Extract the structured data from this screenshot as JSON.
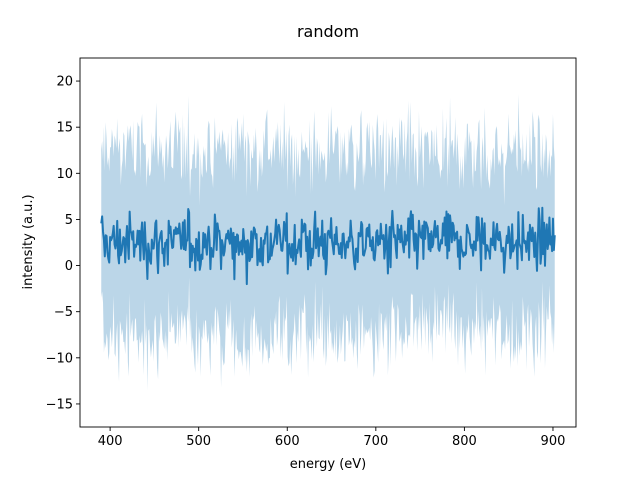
{
  "chart_data": {
    "type": "line",
    "title": "random",
    "xlabel": "energy (eV)",
    "ylabel": "intensity (a.u.)",
    "xlim": [
      366,
      926
    ],
    "ylim": [
      -17.5,
      22.5
    ],
    "x_ticks": [
      400,
      500,
      600,
      700,
      800,
      900
    ],
    "y_ticks": [
      -15,
      -10,
      -5,
      0,
      5,
      10,
      15,
      20
    ],
    "grid": false,
    "legend": "none",
    "series": [
      {
        "x_start": 390,
        "x_end": 902,
        "n_points": 512,
        "line_color": "#1f77b4",
        "band_color": "#1f77b4",
        "band_opacity": 0.3,
        "mean_level": 2.5,
        "values_note_range": [
          -6,
          9
        ],
        "band_upper_range": [
          8,
          20
        ],
        "band_lower_range": [
          -15,
          -3
        ]
      }
    ]
  }
}
